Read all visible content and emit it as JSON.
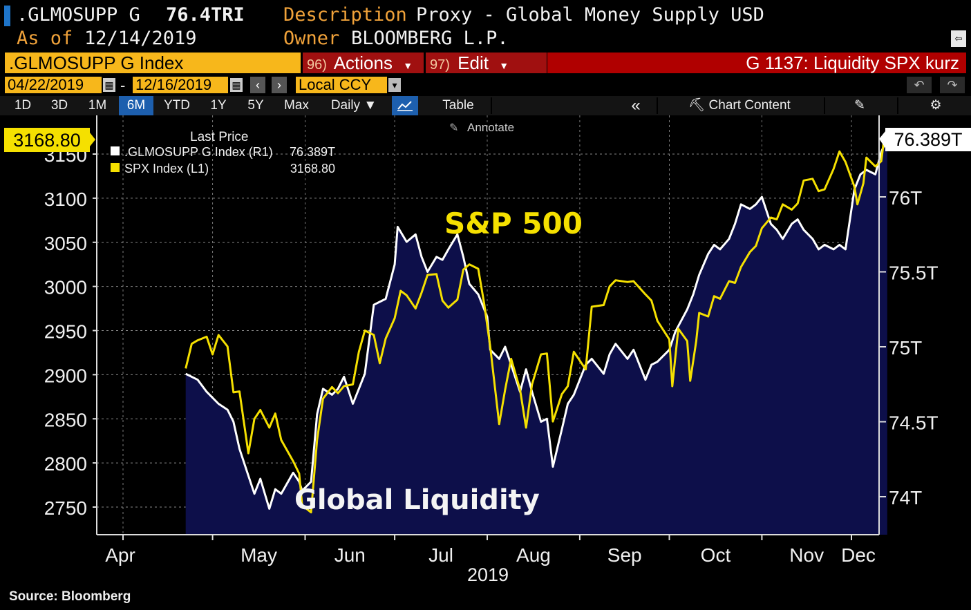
{
  "header": {
    "ticker": ".GLMOSUPP G",
    "last_value": "76.4TRI",
    "description_label": "Description",
    "description_value": "Proxy - Global Money Supply USD",
    "asof_label": "As of",
    "asof_value": "12/14/2019",
    "owner_label": "Owner",
    "owner_value": "BLOOMBERG L.P."
  },
  "toolbar": {
    "security": ".GLMOSUPP G Index",
    "actions_num": "96)",
    "actions_label": "Actions",
    "edit_num": "97)",
    "edit_label": "Edit",
    "chart_title": "G 1137: Liquidity SPX kurz",
    "start_date": "04/22/2019",
    "date_sep": "-",
    "end_date": "12/16/2019",
    "currency": "Local CCY",
    "prev_icon": "‹",
    "next_icon": "›"
  },
  "range_tabs": [
    "1D",
    "3D",
    "1M",
    "6M",
    "YTD",
    "1Y",
    "5Y",
    "Max"
  ],
  "selected_tab": "6M",
  "periodicity": "Daily",
  "table_label": "Table",
  "collapse_icon": "«",
  "chart_content_label": "Chart Content",
  "annotate_label": "Annotate",
  "colors": {
    "liquidity": "#ffffff",
    "spx": "#f5e000",
    "area": "#0d0f4a",
    "accent": "#f7b71b"
  },
  "chart_data": {
    "type": "line",
    "x_label": "2019",
    "x_ticks": [
      "Apr",
      "May",
      "Jun",
      "Jul",
      "Aug",
      "Sep",
      "Oct",
      "Nov",
      "Dec"
    ],
    "y_left_ticks": [
      3150,
      3100,
      3050,
      3000,
      2950,
      2900,
      2850,
      2800,
      2750
    ],
    "y_right_ticks": [
      "76T",
      "75.5T",
      "75T",
      "74.5T",
      "74T"
    ],
    "legend_title": "Last Price",
    "legend": [
      {
        "name": ".GLMOSUPP G Index  (R1)",
        "value": "76.389T"
      },
      {
        "name": "SPX Index  (L1)",
        "value": "3168.80"
      }
    ],
    "left_last_label": "3168.80",
    "right_last_label": "76.389T",
    "annotations": [
      "S&P 500",
      "Global Liquidity"
    ],
    "series": [
      {
        "name": "SPX Index",
        "axis": "left",
        "points": [
          [
            "2019-04-22",
            2907
          ],
          [
            "2019-04-24",
            2935
          ],
          [
            "2019-04-26",
            2939
          ],
          [
            "2019-04-29",
            2943
          ],
          [
            "2019-05-01",
            2923
          ],
          [
            "2019-05-03",
            2945
          ],
          [
            "2019-05-06",
            2932
          ],
          [
            "2019-05-08",
            2880
          ],
          [
            "2019-05-10",
            2881
          ],
          [
            "2019-05-13",
            2811
          ],
          [
            "2019-05-15",
            2850
          ],
          [
            "2019-05-17",
            2860
          ],
          [
            "2019-05-20",
            2840
          ],
          [
            "2019-05-22",
            2856
          ],
          [
            "2019-05-24",
            2826
          ],
          [
            "2019-05-28",
            2802
          ],
          [
            "2019-05-30",
            2788
          ],
          [
            "2019-05-31",
            2752
          ],
          [
            "2019-06-03",
            2744
          ],
          [
            "2019-06-05",
            2826
          ],
          [
            "2019-06-07",
            2873
          ],
          [
            "2019-06-10",
            2886
          ],
          [
            "2019-06-12",
            2879
          ],
          [
            "2019-06-14",
            2887
          ],
          [
            "2019-06-17",
            2889
          ],
          [
            "2019-06-19",
            2926
          ],
          [
            "2019-06-21",
            2950
          ],
          [
            "2019-06-24",
            2945
          ],
          [
            "2019-06-26",
            2913
          ],
          [
            "2019-06-28",
            2941
          ],
          [
            "2019-07-01",
            2964
          ],
          [
            "2019-07-03",
            2995
          ],
          [
            "2019-07-05",
            2990
          ],
          [
            "2019-07-08",
            2975
          ],
          [
            "2019-07-10",
            2993
          ],
          [
            "2019-07-12",
            3013
          ],
          [
            "2019-07-15",
            3014
          ],
          [
            "2019-07-17",
            2984
          ],
          [
            "2019-07-19",
            2976
          ],
          [
            "2019-07-22",
            2985
          ],
          [
            "2019-07-24",
            3019
          ],
          [
            "2019-07-26",
            3025
          ],
          [
            "2019-07-29",
            3020
          ],
          [
            "2019-07-31",
            2980
          ],
          [
            "2019-08-02",
            2932
          ],
          [
            "2019-08-05",
            2844
          ],
          [
            "2019-08-07",
            2883
          ],
          [
            "2019-08-09",
            2918
          ],
          [
            "2019-08-12",
            2883
          ],
          [
            "2019-08-14",
            2840
          ],
          [
            "2019-08-16",
            2889
          ],
          [
            "2019-08-19",
            2923
          ],
          [
            "2019-08-21",
            2924
          ],
          [
            "2019-08-23",
            2847
          ],
          [
            "2019-08-26",
            2878
          ],
          [
            "2019-08-28",
            2887
          ],
          [
            "2019-08-30",
            2926
          ],
          [
            "2019-09-03",
            2906
          ],
          [
            "2019-09-05",
            2977
          ],
          [
            "2019-09-09",
            2979
          ],
          [
            "2019-09-11",
            3000
          ],
          [
            "2019-09-13",
            3007
          ],
          [
            "2019-09-17",
            3005
          ],
          [
            "2019-09-19",
            3006
          ],
          [
            "2019-09-23",
            2991
          ],
          [
            "2019-09-25",
            2984
          ],
          [
            "2019-09-27",
            2961
          ],
          [
            "2019-10-01",
            2940
          ],
          [
            "2019-10-02",
            2887
          ],
          [
            "2019-10-04",
            2952
          ],
          [
            "2019-10-07",
            2938
          ],
          [
            "2019-10-08",
            2893
          ],
          [
            "2019-10-10",
            2938
          ],
          [
            "2019-10-11",
            2970
          ],
          [
            "2019-10-14",
            2966
          ],
          [
            "2019-10-16",
            2989
          ],
          [
            "2019-10-18",
            2986
          ],
          [
            "2019-10-21",
            3006
          ],
          [
            "2019-10-23",
            3004
          ],
          [
            "2019-10-25",
            3022
          ],
          [
            "2019-10-28",
            3039
          ],
          [
            "2019-10-30",
            3046
          ],
          [
            "2019-11-01",
            3066
          ],
          [
            "2019-11-04",
            3078
          ],
          [
            "2019-11-06",
            3076
          ],
          [
            "2019-11-08",
            3093
          ],
          [
            "2019-11-11",
            3087
          ],
          [
            "2019-11-13",
            3094
          ],
          [
            "2019-11-15",
            3120
          ],
          [
            "2019-11-18",
            3122
          ],
          [
            "2019-11-20",
            3108
          ],
          [
            "2019-11-22",
            3110
          ],
          [
            "2019-11-25",
            3133
          ],
          [
            "2019-11-27",
            3153
          ],
          [
            "2019-11-29",
            3141
          ],
          [
            "2019-12-02",
            3113
          ],
          [
            "2019-12-03",
            3093
          ],
          [
            "2019-12-05",
            3117
          ],
          [
            "2019-12-06",
            3146
          ],
          [
            "2019-12-09",
            3136
          ],
          [
            "2019-12-11",
            3142
          ],
          [
            "2019-12-12",
            3169
          ],
          [
            "2019-12-13",
            3169
          ]
        ]
      },
      {
        "name": ".GLMOSUPP G Index",
        "axis": "right",
        "points": [
          [
            "2019-04-22",
            74.82
          ],
          [
            "2019-04-26",
            74.78
          ],
          [
            "2019-04-29",
            74.7
          ],
          [
            "2019-05-03",
            74.62
          ],
          [
            "2019-05-06",
            74.58
          ],
          [
            "2019-05-08",
            74.5
          ],
          [
            "2019-05-10",
            74.32
          ],
          [
            "2019-05-13",
            74.14
          ],
          [
            "2019-05-15",
            74.02
          ],
          [
            "2019-05-17",
            74.12
          ],
          [
            "2019-05-20",
            73.92
          ],
          [
            "2019-05-22",
            74.05
          ],
          [
            "2019-05-24",
            74.02
          ],
          [
            "2019-05-28",
            74.16
          ],
          [
            "2019-05-30",
            74.1
          ],
          [
            "2019-05-31",
            74.04
          ],
          [
            "2019-06-03",
            74.1
          ],
          [
            "2019-06-05",
            74.55
          ],
          [
            "2019-06-07",
            74.72
          ],
          [
            "2019-06-10",
            74.68
          ],
          [
            "2019-06-12",
            74.72
          ],
          [
            "2019-06-14",
            74.8
          ],
          [
            "2019-06-17",
            74.62
          ],
          [
            "2019-06-19",
            74.72
          ],
          [
            "2019-06-21",
            74.82
          ],
          [
            "2019-06-24",
            75.28
          ],
          [
            "2019-06-26",
            75.3
          ],
          [
            "2019-06-28",
            75.32
          ],
          [
            "2019-07-01",
            75.55
          ],
          [
            "2019-07-02",
            75.8
          ],
          [
            "2019-07-05",
            75.7
          ],
          [
            "2019-07-08",
            75.75
          ],
          [
            "2019-07-10",
            75.6
          ],
          [
            "2019-07-12",
            75.5
          ],
          [
            "2019-07-15",
            75.6
          ],
          [
            "2019-07-17",
            75.58
          ],
          [
            "2019-07-19",
            75.65
          ],
          [
            "2019-07-22",
            75.75
          ],
          [
            "2019-07-24",
            75.6
          ],
          [
            "2019-07-26",
            75.42
          ],
          [
            "2019-07-29",
            75.35
          ],
          [
            "2019-08-01",
            75.2
          ],
          [
            "2019-08-02",
            74.98
          ],
          [
            "2019-08-05",
            74.92
          ],
          [
            "2019-08-07",
            75.0
          ],
          [
            "2019-08-09",
            74.88
          ],
          [
            "2019-08-12",
            74.7
          ],
          [
            "2019-08-14",
            74.85
          ],
          [
            "2019-08-16",
            74.7
          ],
          [
            "2019-08-19",
            74.5
          ],
          [
            "2019-08-21",
            74.52
          ],
          [
            "2019-08-23",
            74.2
          ],
          [
            "2019-08-26",
            74.45
          ],
          [
            "2019-08-28",
            74.62
          ],
          [
            "2019-08-30",
            74.68
          ],
          [
            "2019-09-03",
            74.88
          ],
          [
            "2019-09-05",
            74.92
          ],
          [
            "2019-09-09",
            74.82
          ],
          [
            "2019-09-11",
            74.95
          ],
          [
            "2019-09-13",
            75.02
          ],
          [
            "2019-09-17",
            74.92
          ],
          [
            "2019-09-19",
            74.98
          ],
          [
            "2019-09-23",
            74.78
          ],
          [
            "2019-09-25",
            74.88
          ],
          [
            "2019-09-27",
            74.9
          ],
          [
            "2019-10-01",
            74.98
          ],
          [
            "2019-10-03",
            75.1
          ],
          [
            "2019-10-07",
            75.25
          ],
          [
            "2019-10-09",
            75.35
          ],
          [
            "2019-10-11",
            75.48
          ],
          [
            "2019-10-14",
            75.62
          ],
          [
            "2019-10-16",
            75.68
          ],
          [
            "2019-10-18",
            75.65
          ],
          [
            "2019-10-21",
            75.72
          ],
          [
            "2019-10-23",
            75.82
          ],
          [
            "2019-10-25",
            75.95
          ],
          [
            "2019-10-28",
            75.92
          ],
          [
            "2019-10-30",
            75.95
          ],
          [
            "2019-11-01",
            76.0
          ],
          [
            "2019-11-04",
            75.82
          ],
          [
            "2019-11-06",
            75.78
          ],
          [
            "2019-11-08",
            75.72
          ],
          [
            "2019-11-11",
            75.82
          ],
          [
            "2019-11-13",
            75.85
          ],
          [
            "2019-11-15",
            75.78
          ],
          [
            "2019-11-18",
            75.72
          ],
          [
            "2019-11-20",
            75.65
          ],
          [
            "2019-11-22",
            75.68
          ],
          [
            "2019-11-25",
            75.65
          ],
          [
            "2019-11-27",
            75.68
          ],
          [
            "2019-11-29",
            75.65
          ],
          [
            "2019-12-02",
            76.05
          ],
          [
            "2019-12-04",
            76.15
          ],
          [
            "2019-12-06",
            76.18
          ],
          [
            "2019-12-09",
            76.15
          ],
          [
            "2019-12-11",
            76.3
          ],
          [
            "2019-12-13",
            76.39
          ]
        ]
      }
    ]
  },
  "footer": {
    "source": "Source: Bloomberg"
  }
}
